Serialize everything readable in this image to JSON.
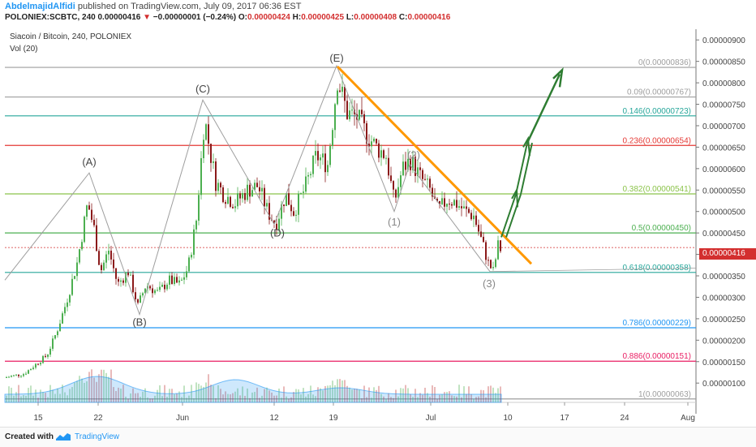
{
  "header": {
    "author": "AbdelmajidAlfidi",
    "published": "published on TradingView.com, July 09, 2017 06:36 EST",
    "symbol": "POLONIEX:SCBTC, 240",
    "last": "0.00000416",
    "change_arrow": "▼",
    "change": "−0.00000001 (−0.24%)",
    "o_label": "O:",
    "o": "0.00000424",
    "h_label": "H:",
    "h": "0.00000425",
    "l_label": "L:",
    "l": "0.00000408",
    "c_label": "C:",
    "c": "0.00000416"
  },
  "legend": {
    "title": "Siacoin / Bitcoin, 240, POLONIEX",
    "volume": "Vol (20)"
  },
  "price_tag": "0.00000416",
  "footer": {
    "created_with": "Created with",
    "brand": "TradingView"
  },
  "colors": {
    "up": "#4caf50",
    "down": "#8b1a1a",
    "orange": "#ff9800",
    "green_arrow": "#2e7d32",
    "last_price": "#d32f2f"
  },
  "chart_data": {
    "type": "candlestick",
    "y_ticks": [
      "0.00000900",
      "0.00000850",
      "0.00000800",
      "0.00000750",
      "0.00000700",
      "0.00000650",
      "0.00000600",
      "0.00000550",
      "0.00000500",
      "0.00000450",
      "0.00000400",
      "0.00000350",
      "0.00000300",
      "0.00000250",
      "0.00000200",
      "0.00000150",
      "0.00000100"
    ],
    "x_ticks": [
      "15",
      "22",
      "Jun",
      "12",
      "19",
      "Jul",
      "10",
      "17",
      "24",
      "Aug"
    ],
    "ylim": [
      5.5e-07,
      9.25e-06
    ],
    "fib_levels": [
      {
        "ratio": "0",
        "price": 8.36e-06,
        "label": "0(0.00000836)",
        "color": "#9e9e9e"
      },
      {
        "ratio": "0.09",
        "price": 7.67e-06,
        "label": "0.09(0.00000767)",
        "color": "#9e9e9e"
      },
      {
        "ratio": "0.146",
        "price": 7.23e-06,
        "label": "0.146(0.00000723)",
        "color": "#26a69a"
      },
      {
        "ratio": "0.236",
        "price": 6.54e-06,
        "label": "0.236(0.00000654)",
        "color": "#e53935"
      },
      {
        "ratio": "0.382",
        "price": 5.41e-06,
        "label": "0.382(0.00000541)",
        "color": "#8bc34a"
      },
      {
        "ratio": "0.5",
        "price": 4.5e-06,
        "label": "0.5(0.00000450)",
        "color": "#4caf50"
      },
      {
        "ratio": "0.618",
        "price": 3.58e-06,
        "label": "0.618(0.00000358)",
        "color": "#26a69a"
      },
      {
        "ratio": "0.786",
        "price": 2.29e-06,
        "label": "0.786(0.00000229)",
        "color": "#2196f3"
      },
      {
        "ratio": "0.886",
        "price": 1.51e-06,
        "label": "0.886(0.00000151)",
        "color": "#e91e63"
      },
      {
        "ratio": "1",
        "price": 6.3e-07,
        "label": "1(0.00000063)",
        "color": "#9e9e9e"
      }
    ],
    "last_price": 4.16e-06,
    "wave_labels": [
      "(A)",
      "(B)",
      "(C)",
      "(D)",
      "(E)",
      "(1)",
      "(2)",
      "(3)"
    ]
  }
}
